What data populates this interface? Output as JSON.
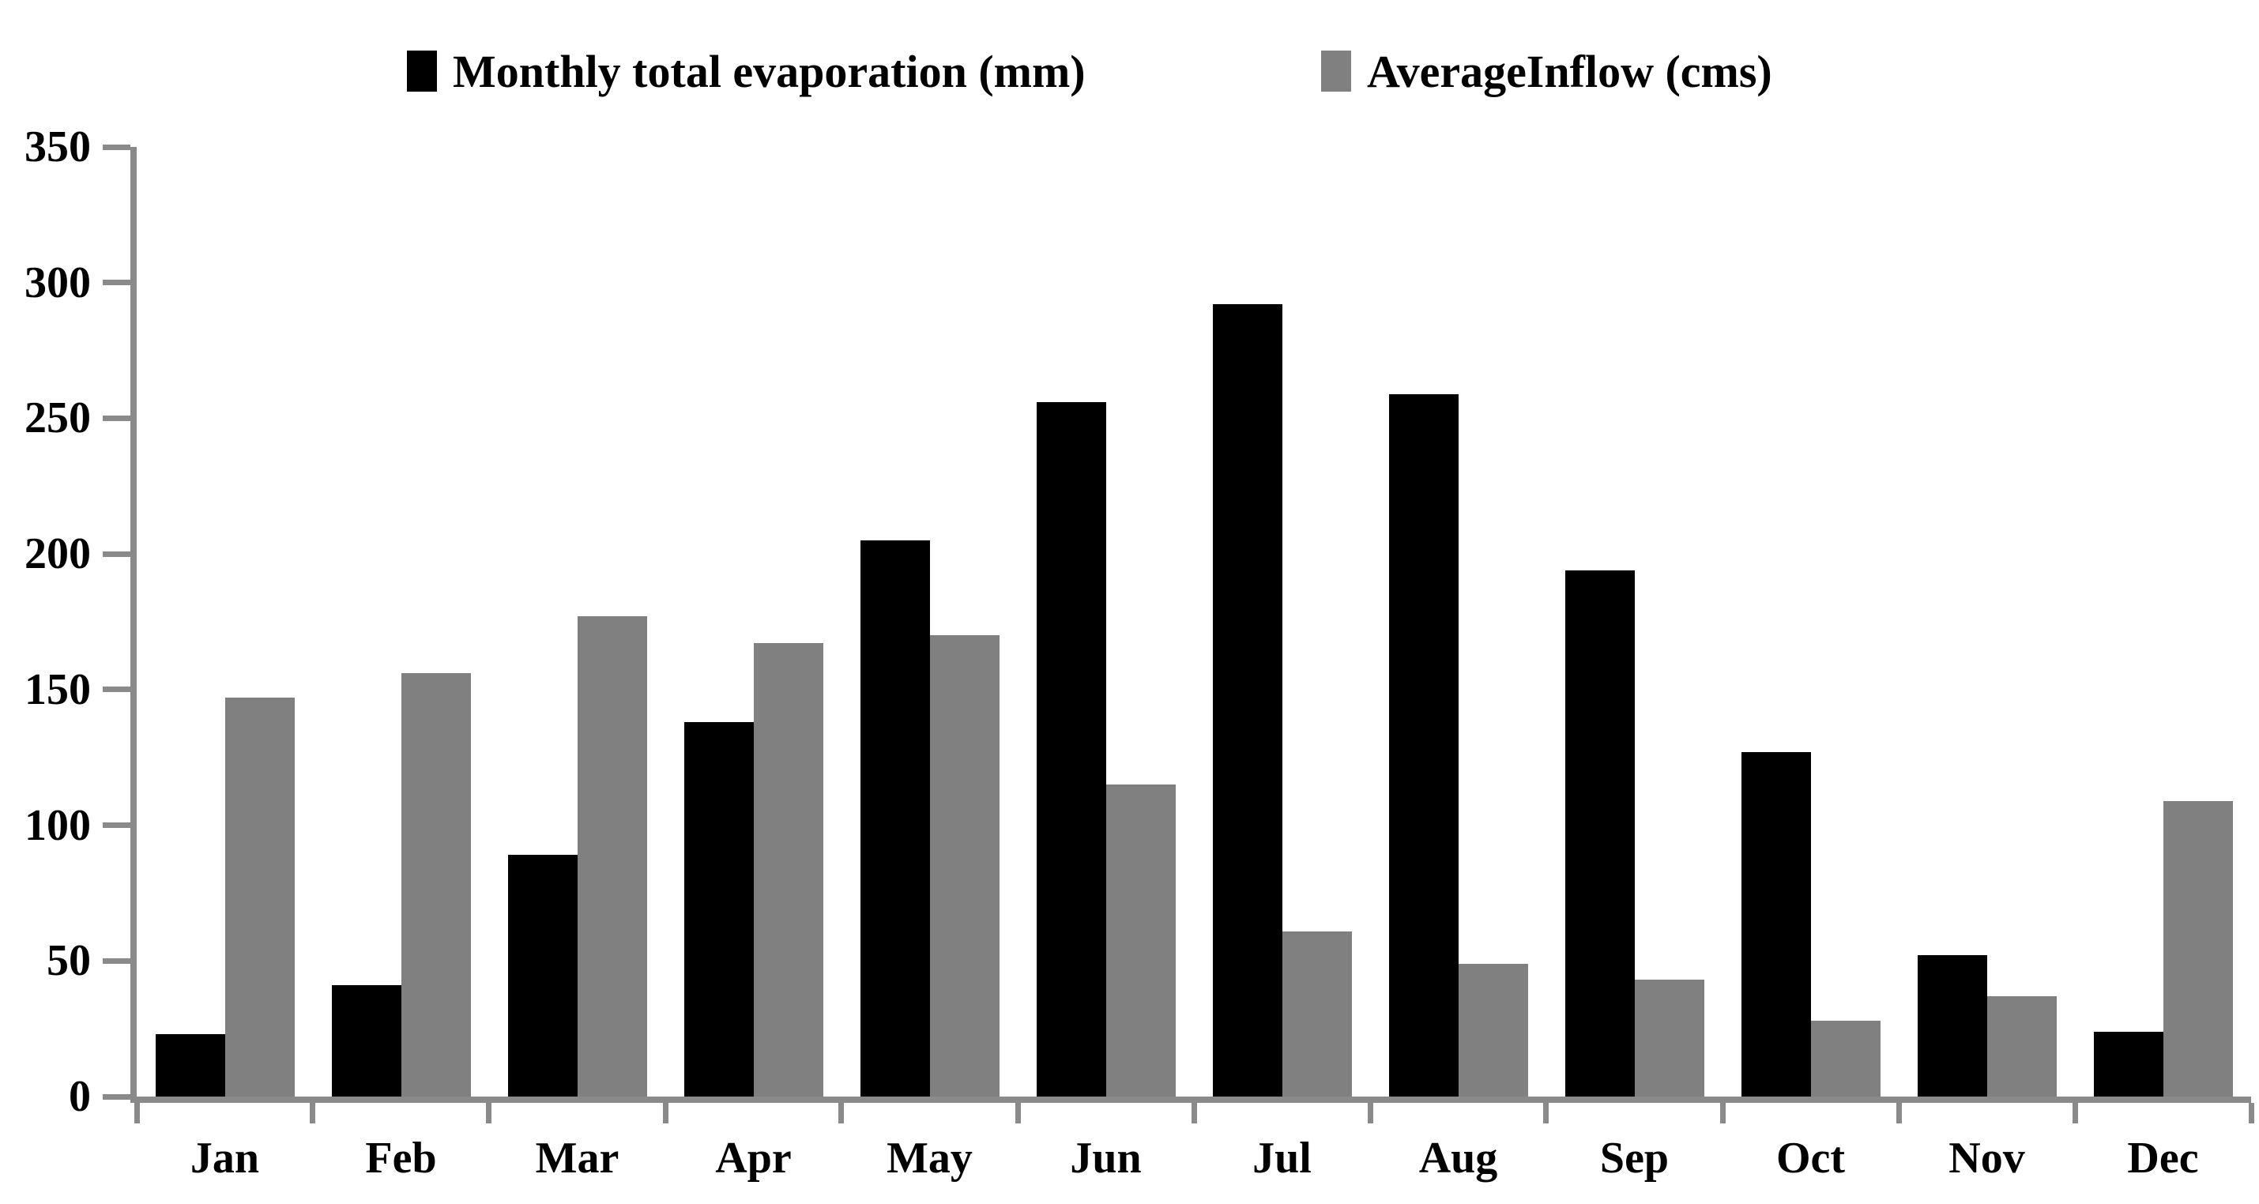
{
  "legend": {
    "items": [
      {
        "label": "Monthly total evaporation (mm)",
        "color": "#000000"
      },
      {
        "label": "AverageInflow (cms)",
        "color": "#808080"
      }
    ]
  },
  "chart_data": {
    "type": "bar",
    "title": "",
    "xlabel": "",
    "ylabel": "",
    "categories": [
      "Jan",
      "Feb",
      "Mar",
      "Apr",
      "May",
      "Jun",
      "Jul",
      "Aug",
      "Sep",
      "Oct",
      "Nov",
      "Dec"
    ],
    "series": [
      {
        "name": "Monthly total evaporation (mm)",
        "color": "#000000",
        "values": [
          23,
          41,
          89,
          138,
          205,
          256,
          292,
          259,
          194,
          127,
          52,
          24
        ]
      },
      {
        "name": "AverageInflow (cms)",
        "color": "#808080",
        "values": [
          147,
          156,
          177,
          167,
          170,
          115,
          61,
          49,
          43,
          28,
          37,
          109
        ]
      }
    ],
    "ylim": [
      0,
      350
    ],
    "yticks": [
      0,
      50,
      100,
      150,
      200,
      250,
      300,
      350
    ],
    "grid": false,
    "legend_position": "top",
    "axis_color": "#8a8a8a"
  }
}
